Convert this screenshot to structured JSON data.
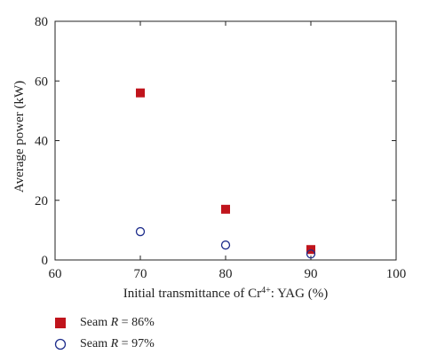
{
  "chart_data": {
    "type": "scatter",
    "title": "",
    "xlabel_prefix": "Initial transmittance of Cr",
    "xlabel_sup": "4+",
    "xlabel_suffix": ": YAG (%)",
    "ylabel": "Average power (kW)",
    "xlim": [
      60,
      100
    ],
    "ylim": [
      0,
      80
    ],
    "xticks": [
      "60",
      "70",
      "80",
      "90",
      "100"
    ],
    "yticks": [
      "0",
      "20",
      "40",
      "60",
      "80"
    ],
    "grid": false,
    "legend_position": "bottom-left, below plot",
    "series": [
      {
        "name_prefix": "Seam ",
        "name_var": "R",
        "name_suffix": " = 86%",
        "marker": "filled-square",
        "color": "#c0141c",
        "x": [
          70,
          80,
          90
        ],
        "y": [
          56,
          17,
          3.5
        ]
      },
      {
        "name_prefix": "Seam ",
        "name_var": "R",
        "name_suffix": " = 97%",
        "marker": "open-circle",
        "color": "#1f2e8c",
        "x": [
          70,
          80,
          90
        ],
        "y": [
          9.5,
          5,
          2
        ]
      }
    ]
  }
}
